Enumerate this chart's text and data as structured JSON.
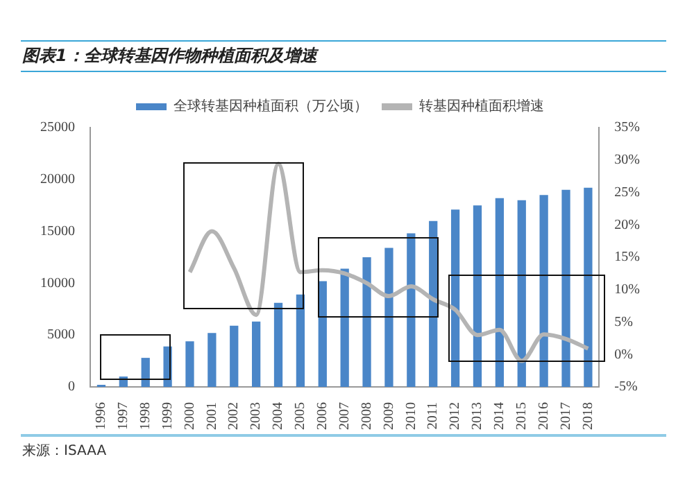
{
  "chart_data": {
    "type": "bar",
    "title": "图表1：全球转基因作物种植面积及增速",
    "categories": [
      "1996",
      "1997",
      "1998",
      "1999",
      "2000",
      "2001",
      "2002",
      "2003",
      "2004",
      "2005",
      "2006",
      "2007",
      "2008",
      "2009",
      "2010",
      "2011",
      "2012",
      "2013",
      "2014",
      "2015",
      "2016",
      "2017",
      "2018"
    ],
    "series": [
      {
        "name": "全球转基因种植面积（万公顷）",
        "color": "#4a86c8",
        "values": [
          200,
          1000,
          2800,
          3900,
          4400,
          5200,
          5900,
          6300,
          8100,
          8900,
          10200,
          11400,
          12500,
          13400,
          14800,
          16000,
          17100,
          17500,
          18200,
          18000,
          18500,
          19000,
          19200
        ]
      },
      {
        "name": "转基因种植面积增速",
        "type": "line",
        "axis": "y2",
        "color": "#b4b4b4",
        "values": [
          null,
          null,
          null,
          null,
          12.7,
          19,
          13.3,
          6.1,
          29.4,
          12.7,
          13,
          12.5,
          11,
          9,
          10.5,
          8.5,
          6.9,
          3,
          3.8,
          -1,
          3.1,
          2.4,
          0.9
        ]
      }
    ],
    "ylim": [
      0,
      25000
    ],
    "yticks": [
      0,
      5000,
      10000,
      15000,
      20000,
      25000
    ],
    "y2lim": [
      -5,
      35
    ],
    "y2ticks": [
      {
        "value": -5,
        "label": "-5%"
      },
      {
        "value": 0,
        "label": "0%"
      },
      {
        "value": 5,
        "label": "5%"
      },
      {
        "value": 10,
        "label": "10%"
      },
      {
        "value": 15,
        "label": "15%"
      },
      {
        "value": 20,
        "label": "20%"
      },
      {
        "value": 25,
        "label": "25%"
      },
      {
        "value": 30,
        "label": "30%"
      },
      {
        "value": 35,
        "label": "35%"
      }
    ],
    "legend": "top",
    "grid": false,
    "annotations": [
      "来源：ISAAA"
    ]
  }
}
